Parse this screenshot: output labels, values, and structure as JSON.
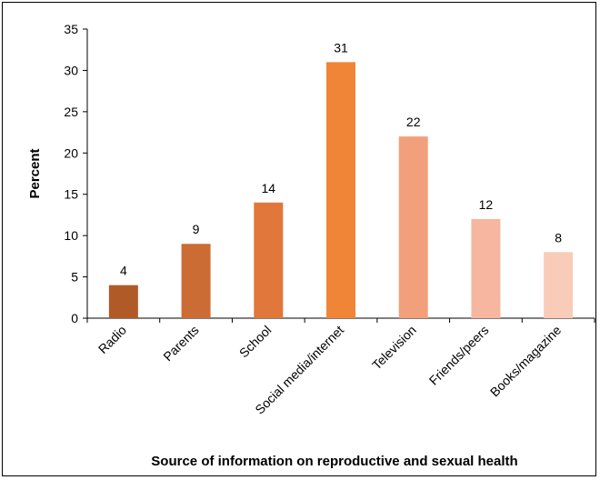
{
  "chart_data": {
    "type": "bar",
    "title": "",
    "xlabel": "Source of information on reproductive and sexual health",
    "ylabel": "Percent",
    "ylim": [
      0,
      35
    ],
    "yticks": [
      0,
      5,
      10,
      15,
      20,
      25,
      30,
      35
    ],
    "grid": false,
    "categories": [
      "Radio",
      "Parents",
      "School",
      "Social media/internet",
      "Television",
      "Friends/peers",
      "Books/magazine"
    ],
    "values": [
      4,
      9,
      14,
      31,
      22,
      12,
      8
    ],
    "bar_colors": [
      "#b05a28",
      "#cc6c35",
      "#e1773a",
      "#f08538",
      "#f2a07c",
      "#f6b6a0",
      "#f8ccb8"
    ],
    "data_labels": [
      "4",
      "9",
      "14",
      "31",
      "22",
      "12",
      "8"
    ]
  }
}
